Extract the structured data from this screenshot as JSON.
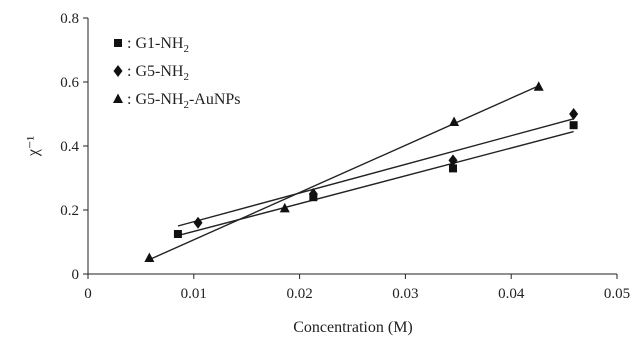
{
  "chart_data": {
    "type": "scatter",
    "title": "",
    "xlabel": "Concentration (M)",
    "ylabel": "χ⁻¹",
    "xlim": [
      0,
      0.05
    ],
    "ylim": [
      0,
      0.8
    ],
    "x_ticks": [
      "0",
      "0.01",
      "0.02",
      "0.03",
      "0.04",
      "0.05"
    ],
    "y_ticks": [
      "0",
      "0.2",
      "0.4",
      "0.6",
      "0.8"
    ],
    "grid": false,
    "legend_position": "top-left",
    "series": [
      {
        "name_parts": [
          "G1-NH",
          "2",
          ""
        ],
        "marker": "square",
        "x": [
          0.0085,
          0.0213,
          0.0345,
          0.0459
        ],
        "y": [
          0.125,
          0.24,
          0.33,
          0.465
        ],
        "fit": [
          [
            0.0085,
            0.12
          ],
          [
            0.0459,
            0.445
          ]
        ]
      },
      {
        "name_parts": [
          "G5-NH",
          "2",
          ""
        ],
        "marker": "diamond",
        "x": [
          0.0104,
          0.0213,
          0.0345,
          0.0459
        ],
        "y": [
          0.16,
          0.25,
          0.355,
          0.5
        ],
        "fit": [
          [
            0.0085,
            0.15
          ],
          [
            0.0459,
            0.485
          ]
        ]
      },
      {
        "name_parts": [
          "G5-NH",
          "2",
          "-AuNPs"
        ],
        "marker": "triangle",
        "x": [
          0.0058,
          0.0186,
          0.0346,
          0.0426
        ],
        "y": [
          0.05,
          0.205,
          0.475,
          0.585
        ],
        "fit": [
          [
            0.0058,
            0.045
          ],
          [
            0.0426,
            0.588
          ]
        ]
      }
    ]
  }
}
